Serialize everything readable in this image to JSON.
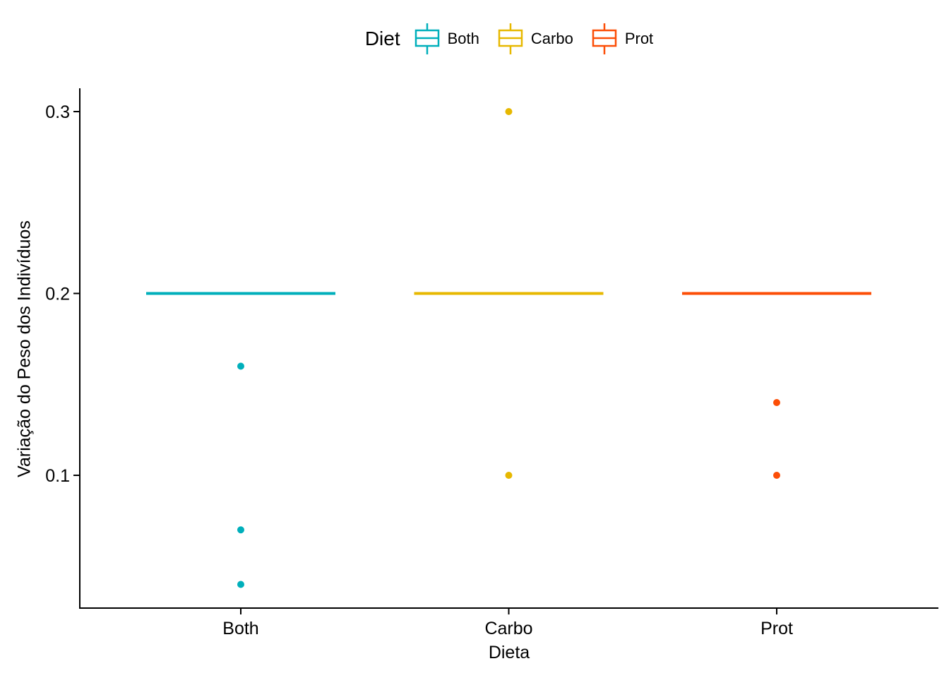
{
  "chart_data": {
    "type": "boxplot",
    "title": "",
    "legend_title": "Diet",
    "legend_position": "top",
    "xlabel": "Dieta",
    "ylabel": "Variação do Peso dos Indivíduos",
    "categories": [
      "Both",
      "Carbo",
      "Prot"
    ],
    "y_ticks": [
      {
        "label": "0.3",
        "value": 0.3
      },
      {
        "label": "0.2",
        "value": 0.2
      },
      {
        "label": "0.1",
        "value": 0.1
      }
    ],
    "ylim": [
      0.027,
      0.313
    ],
    "grid": false,
    "series": [
      {
        "name": "Both",
        "color": "#00AFBB",
        "median": 0.2,
        "q1": 0.2,
        "q3": 0.2,
        "whisker_low": 0.2,
        "whisker_high": 0.2,
        "outliers": [
          0.16,
          0.07,
          0.04
        ]
      },
      {
        "name": "Carbo",
        "color": "#E7B800",
        "median": 0.2,
        "q1": 0.2,
        "q3": 0.2,
        "whisker_low": 0.2,
        "whisker_high": 0.2,
        "outliers": [
          0.3,
          0.1
        ]
      },
      {
        "name": "Prot",
        "color": "#FC4E07",
        "median": 0.2,
        "q1": 0.2,
        "q3": 0.2,
        "whisker_low": 0.2,
        "whisker_high": 0.2,
        "outliers": [
          0.14,
          0.1
        ]
      }
    ]
  }
}
